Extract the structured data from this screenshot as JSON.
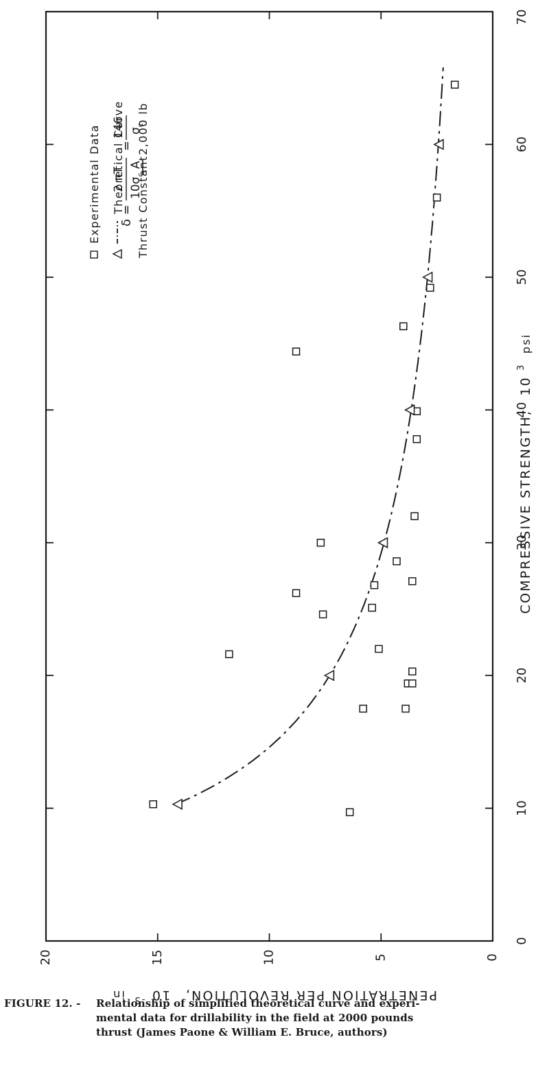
{
  "chart_data": {
    "type": "scatter",
    "orientation": "rotated-90-clockwise",
    "xlabel": "COMPRESSIVE STRENGTH,",
    "xlabel_unit_base": "10",
    "xlabel_unit_exp": "3",
    "xlabel_unit_tail": "psi",
    "ylabel": "PENETRATION PER REVOLUTION,",
    "ylabel_unit_base": "10",
    "ylabel_unit_exp": "-3",
    "ylabel_unit_tail": "in",
    "xlim": [
      0,
      70
    ],
    "ylim": [
      0,
      20
    ],
    "x_ticks": [
      0,
      10,
      20,
      30,
      40,
      50,
      60,
      70
    ],
    "y_ticks": [
      0,
      5,
      10,
      15,
      20
    ],
    "x_tick_labels": [
      "0",
      "10",
      "20",
      "30",
      "40",
      "50",
      "60",
      "70"
    ],
    "y_tick_labels": [
      "0",
      "5",
      "10",
      "15",
      "20"
    ],
    "legend": {
      "position": "top-right",
      "experimental_label": "Experimental Data",
      "theoretical_label": "Theoretical Curve",
      "thrust_label": "Thrust Constant",
      "thrust_value": "2,000 lb",
      "formula_lhs": "δ =",
      "formula_num": "2 πT",
      "formula_den": "10σ",
      "formula_den_sub": "c",
      "formula_den_tail": " A",
      "formula_eq": "=",
      "formula_num2": "146",
      "formula_den2": "σ",
      "formula_den2_sub": "c"
    },
    "series": [
      {
        "name": "Experimental Data",
        "marker": "square",
        "x": [
          10.3,
          9.7,
          17.5,
          17.5,
          19.4,
          19.4,
          20.3,
          21.6,
          22.0,
          24.6,
          25.1,
          26.2,
          26.8,
          27.1,
          28.6,
          30.0,
          32.0,
          37.8,
          39.9,
          44.4,
          46.3,
          49.2,
          56.0,
          64.5
        ],
        "y": [
          15.2,
          6.4,
          5.8,
          3.9,
          3.8,
          3.6,
          3.6,
          11.8,
          5.1,
          7.6,
          5.4,
          8.8,
          5.3,
          3.6,
          4.3,
          7.7,
          3.5,
          3.4,
          3.4,
          8.8,
          4.0,
          2.8,
          2.5,
          1.7
        ]
      },
      {
        "name": "Theoretical Curve",
        "marker": "triangle",
        "line": "dash-dot",
        "x": [
          10.3,
          20,
          30,
          40,
          50,
          60
        ],
        "y": [
          14.1,
          7.3,
          4.9,
          3.7,
          2.9,
          2.4
        ]
      }
    ]
  },
  "caption": {
    "lead": "FIGURE 12. -",
    "line1": "Relationship of simplified theoretical curve and experi-",
    "line2": "mental data for drillability in the field at 2000 pounds",
    "line3": "thrust (James Paone & William E. Bruce, authors)"
  }
}
